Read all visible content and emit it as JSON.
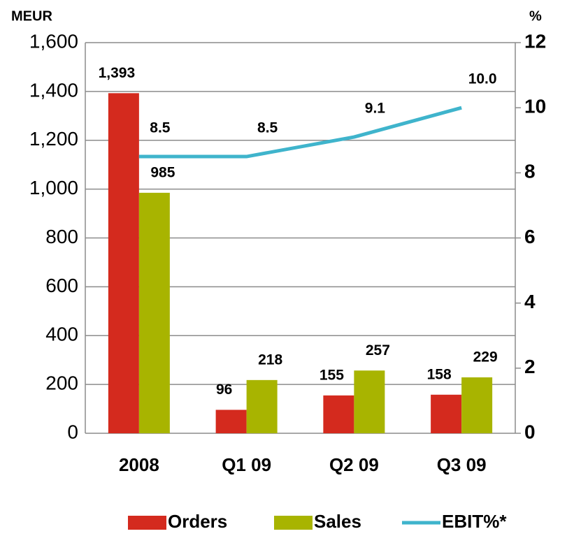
{
  "chart_data": {
    "type": "bar",
    "y_axis_title": "MEUR",
    "y2_axis_title": "%",
    "categories": [
      "2008",
      "Q1 09",
      "Q2 09",
      "Q3 09"
    ],
    "series": [
      {
        "name": "Orders",
        "color": "#d42a1e",
        "values": [
          1393,
          96,
          155,
          158
        ],
        "value_labels": [
          "1,393",
          "96",
          "155",
          "158"
        ]
      },
      {
        "name": "Sales",
        "color": "#a8b400",
        "values": [
          985,
          218,
          257,
          229
        ]
      },
      {
        "name": "EBIT%*",
        "type": "line",
        "axis": "y2",
        "color": "#3fb4cc",
        "values": [
          8.5,
          8.5,
          9.1,
          10.0
        ],
        "value_labels": [
          "8.5",
          "8.5",
          "9.1",
          "10.0"
        ]
      }
    ],
    "ylim": [
      0,
      1600
    ],
    "yticks": [
      0,
      200,
      400,
      600,
      800,
      {
        "value": 1000,
        "label": "1,000"
      },
      {
        "value": 1200,
        "label": "1,200"
      },
      {
        "value": 1400,
        "label": "1,400"
      },
      {
        "value": 1600,
        "label": "1,600"
      }
    ],
    "y2lim": [
      0,
      12
    ],
    "y2ticks": [
      0,
      2,
      4,
      6,
      8,
      10,
      12
    ],
    "grid": true,
    "legend": "bottom"
  }
}
